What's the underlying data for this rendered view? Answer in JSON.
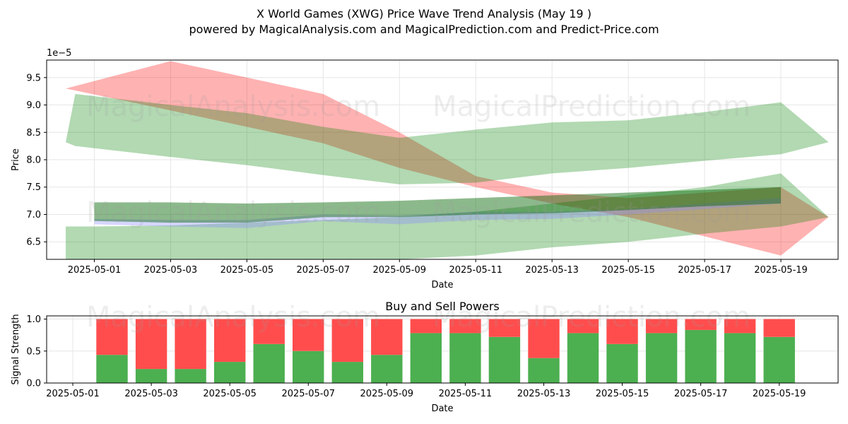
{
  "title": "X World Games (XWG) Price Wave Trend Analysis (May 19 )",
  "subtitle": "powered by MagicalAnalysis.com and MagicalPrediction.com and Predict-Price.com",
  "watermarks": [
    "MagicalAnalysis.com",
    "MagicalPrediction.com"
  ],
  "colors": {
    "red_band": "#ff0000",
    "green_band": "#008000",
    "buy": "#4caf50",
    "sell": "#ff4d4d",
    "blue_band": "#8a8aff"
  },
  "chart_data": [
    {
      "type": "area",
      "title": "",
      "xlabel": "Date",
      "ylabel": "Price",
      "scale_label": "1e−5",
      "ylim": [
        6.18,
        9.82
      ],
      "xlim": [
        "2025-04-29 18:00",
        "2025-05-20 12:00"
      ],
      "yticks": [
        6.5,
        7.0,
        7.5,
        8.0,
        8.5,
        9.0,
        9.5
      ],
      "xticks": [
        "2025-05-01",
        "2025-05-03",
        "2025-05-05",
        "2025-05-07",
        "2025-05-09",
        "2025-05-11",
        "2025-05-13",
        "2025-05-15",
        "2025-05-17",
        "2025-05-19"
      ],
      "grid": true,
      "bands": [
        {
          "name": "red-wave",
          "color": "#ff0000",
          "opacity": 0.3,
          "x": [
            "2025-04-30 06:00",
            "2025-05-03",
            "2025-05-05",
            "2025-05-07",
            "2025-05-09",
            "2025-05-11",
            "2025-05-13",
            "2025-05-15",
            "2025-05-17",
            "2025-05-19",
            "2025-05-20 06:00"
          ],
          "upper": [
            9.3,
            9.8,
            9.5,
            9.2,
            8.5,
            7.7,
            7.4,
            7.3,
            7.4,
            7.5,
            6.95
          ],
          "lower": [
            9.3,
            8.9,
            8.6,
            8.3,
            7.85,
            7.5,
            7.2,
            6.95,
            6.6,
            6.25,
            6.95
          ]
        },
        {
          "name": "green-wave-upper",
          "color": "#008000",
          "opacity": 0.3,
          "x": [
            "2025-04-30 06:00",
            "2025-04-30 12:00",
            "2025-05-03",
            "2025-05-05",
            "2025-05-07",
            "2025-05-09",
            "2025-05-11",
            "2025-05-13",
            "2025-05-15",
            "2025-05-17",
            "2025-05-19",
            "2025-05-20 06:00"
          ],
          "upper": [
            8.32,
            9.2,
            9.0,
            8.85,
            8.6,
            8.4,
            8.55,
            8.68,
            8.72,
            8.87,
            9.05,
            8.32
          ],
          "lower": [
            8.32,
            8.25,
            8.05,
            7.9,
            7.72,
            7.55,
            7.58,
            7.75,
            7.85,
            7.98,
            8.1,
            8.32
          ]
        },
        {
          "name": "green-wave-lower",
          "color": "#008000",
          "opacity": 0.3,
          "x": [
            "2025-04-30 06:00",
            "2025-05-01",
            "2025-05-03",
            "2025-05-05",
            "2025-05-07",
            "2025-05-09",
            "2025-05-11",
            "2025-05-13",
            "2025-05-15",
            "2025-05-17",
            "2025-05-19",
            "2025-05-20 06:00"
          ],
          "upper": [
            6.78,
            6.78,
            6.8,
            6.85,
            6.9,
            6.95,
            7.05,
            7.2,
            7.35,
            7.5,
            7.75,
            6.95
          ],
          "lower": [
            6.18,
            6.18,
            6.18,
            6.18,
            6.18,
            6.18,
            6.25,
            6.4,
            6.5,
            6.65,
            6.78,
            6.95
          ]
        },
        {
          "name": "blue-wave",
          "color": "#8a8aff",
          "opacity": 0.35,
          "x": [
            "2025-05-01",
            "2025-05-03",
            "2025-05-05",
            "2025-05-07",
            "2025-05-09",
            "2025-05-11",
            "2025-05-13",
            "2025-05-15",
            "2025-05-17",
            "2025-05-19"
          ],
          "upper": [
            6.92,
            6.9,
            6.9,
            7.0,
            6.98,
            7.05,
            7.05,
            7.1,
            7.2,
            7.3
          ],
          "lower": [
            6.82,
            6.78,
            6.75,
            6.88,
            6.82,
            6.9,
            6.92,
            7.0,
            7.1,
            7.2
          ]
        },
        {
          "name": "dark-green-wave",
          "color": "#006400",
          "opacity": 0.45,
          "x": [
            "2025-05-01",
            "2025-05-03",
            "2025-05-05",
            "2025-05-07",
            "2025-05-09",
            "2025-05-11",
            "2025-05-13",
            "2025-05-15",
            "2025-05-17",
            "2025-05-19"
          ],
          "upper": [
            7.22,
            7.22,
            7.2,
            7.22,
            7.25,
            7.3,
            7.35,
            7.4,
            7.45,
            7.5
          ],
          "lower": [
            6.88,
            6.85,
            6.85,
            6.95,
            6.95,
            7.0,
            7.02,
            7.08,
            7.15,
            7.2
          ]
        }
      ]
    },
    {
      "type": "bar",
      "title": "Buy and Sell Powers",
      "xlabel": "Date",
      "ylabel": "Signal Strength",
      "ylim": [
        0,
        1.05
      ],
      "yticks": [
        0.0,
        0.5,
        1.0
      ],
      "xticks": [
        "2025-05-01",
        "2025-05-03",
        "2025-05-05",
        "2025-05-07",
        "2025-05-09",
        "2025-05-11",
        "2025-05-13",
        "2025-05-15",
        "2025-05-17",
        "2025-05-19"
      ],
      "grid": true,
      "categories": [
        "2025-05-02",
        "2025-05-03",
        "2025-05-04",
        "2025-05-05",
        "2025-05-06",
        "2025-05-07",
        "2025-05-08",
        "2025-05-09",
        "2025-05-10",
        "2025-05-11",
        "2025-05-12",
        "2025-05-13",
        "2025-05-14",
        "2025-05-15",
        "2025-05-16",
        "2025-05-17",
        "2025-05-18",
        "2025-05-19"
      ],
      "series": [
        {
          "name": "Buy",
          "color": "#4caf50",
          "values": [
            0.44,
            0.22,
            0.22,
            0.33,
            0.61,
            0.5,
            0.33,
            0.44,
            0.78,
            0.78,
            0.72,
            0.39,
            0.78,
            0.61,
            0.78,
            0.83,
            0.78,
            0.72
          ]
        },
        {
          "name": "Sell",
          "color": "#ff4d4d",
          "values": [
            0.56,
            0.78,
            0.78,
            0.67,
            0.39,
            0.5,
            0.67,
            0.56,
            0.22,
            0.22,
            0.28,
            0.61,
            0.22,
            0.39,
            0.22,
            0.17,
            0.22,
            0.28
          ]
        }
      ]
    }
  ]
}
